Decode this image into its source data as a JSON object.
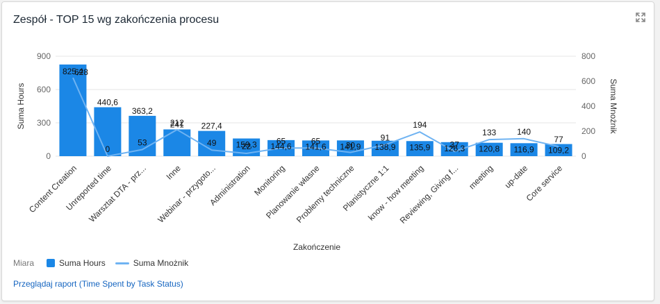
{
  "widget": {
    "title": "Zespół - TOP 15 wg zakończenia procesu",
    "expand_icon": "expand-icon",
    "legend_heading": "Miara",
    "report_link": "Przeglądaj raport (Time Spent by Task Status)"
  },
  "colors": {
    "bar": "#1b87e6",
    "line": "#6fb3f2",
    "grid": "#e6e6e6"
  },
  "chart_data": {
    "type": "bar",
    "xlabel": "Zakończenie",
    "ylabel": "Suma Hours",
    "y2label": "Suma Mnożnik",
    "ylim": [
      0,
      900
    ],
    "y2lim": [
      0,
      800
    ],
    "yticks": [
      0,
      300,
      600,
      900
    ],
    "y2ticks": [
      0,
      200,
      400,
      600,
      800
    ],
    "legend_position": "bottom-left",
    "categories": [
      "Content Creation",
      "Unreported time",
      "Warsztat DTA - prz...",
      "Inne",
      "Webinar - przygoto...",
      "Administration",
      "Monitoring",
      "Planowanie własne",
      "Problemy techniczne",
      "Planistyczne 1:1",
      "know - how meeting",
      "Reviewing, Giving f...",
      "meeting",
      "up-date",
      "Core service"
    ],
    "series": [
      {
        "name": "Suma Hours",
        "type": "bar",
        "axis": "left",
        "values": [
          825.4,
          440.6,
          363.2,
          241,
          227.4,
          159.3,
          144.6,
          141.6,
          141.9,
          138.9,
          135.9,
          126.3,
          120.8,
          116.9,
          109.2
        ],
        "labels": [
          "825,4",
          "440,6",
          "363,2",
          "241",
          "227,4",
          "159,3",
          "144,6",
          "141,6",
          "141,9",
          "138,9",
          "135,9",
          "126,3",
          "120,8",
          "116,9",
          "109,2"
        ]
      },
      {
        "name": "Suma Mnożnik",
        "type": "line",
        "axis": "right",
        "values": [
          628,
          0,
          53,
          212,
          49,
          22,
          65,
          65,
          30,
          91,
          194,
          37,
          133,
          140,
          77
        ],
        "labels": [
          "628",
          "0",
          "53",
          "212",
          "49",
          "22",
          "65",
          "65",
          "30",
          "91",
          "194",
          "37",
          "133",
          "140",
          "77"
        ]
      }
    ]
  }
}
